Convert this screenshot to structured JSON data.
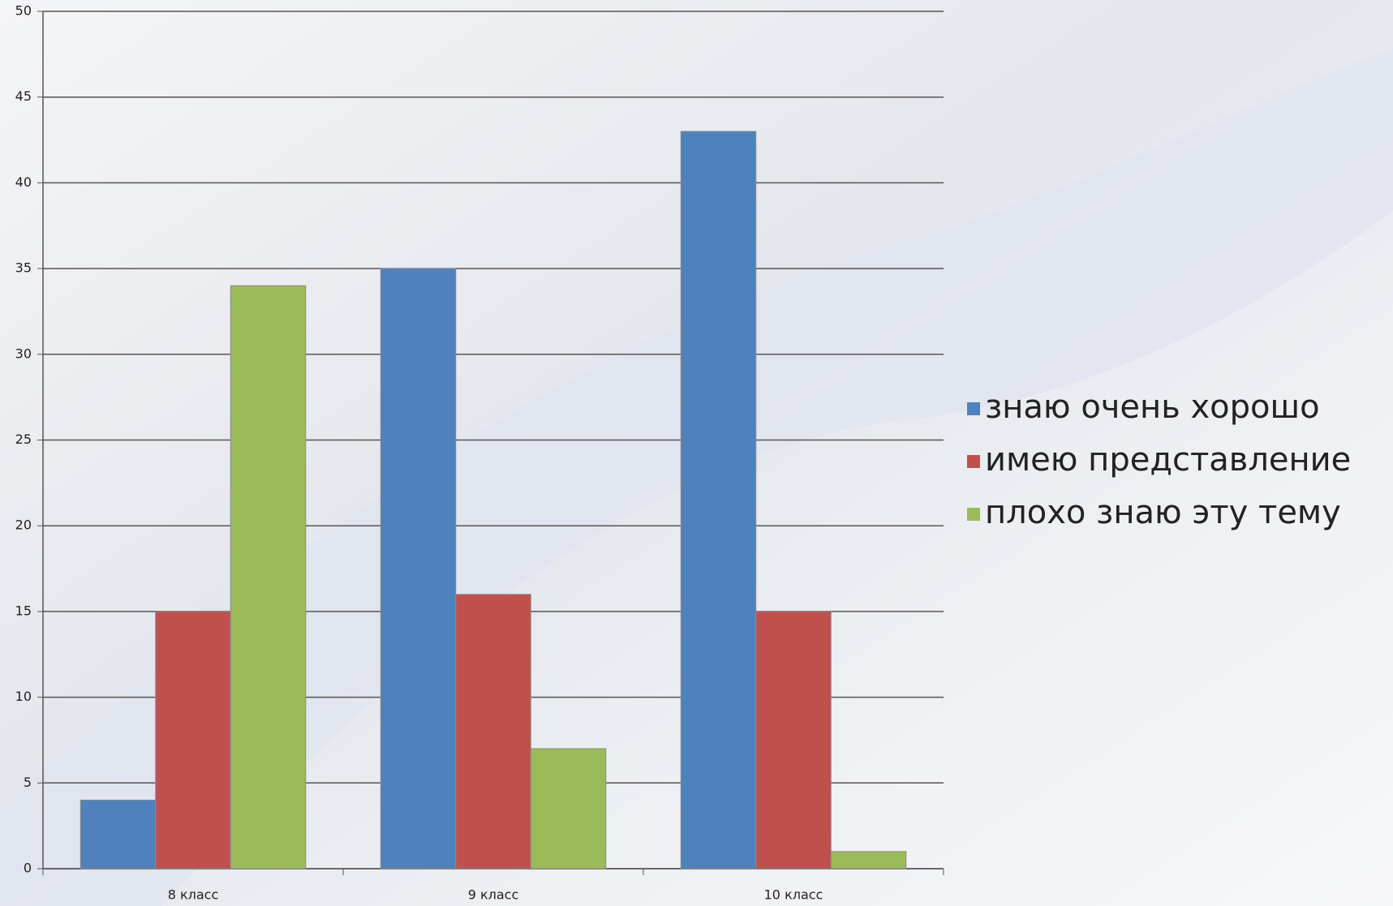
{
  "chart_data": {
    "type": "bar",
    "categories": [
      "8 класс",
      "9 класс",
      "10 класс"
    ],
    "series": [
      {
        "name": "знаю очень хорошо",
        "color": "#4f81bd",
        "values": [
          4,
          35,
          43
        ]
      },
      {
        "name": "имею представление",
        "color": "#c0504d",
        "values": [
          15,
          16,
          15
        ]
      },
      {
        "name": "плохо знаю эту тему",
        "color": "#9bbb59",
        "values": [
          34,
          7,
          1
        ]
      }
    ],
    "ylim": [
      0,
      50
    ],
    "yticks": [
      0,
      5,
      10,
      15,
      20,
      25,
      30,
      35,
      40,
      45,
      50
    ],
    "grid": true,
    "legend": "right"
  }
}
